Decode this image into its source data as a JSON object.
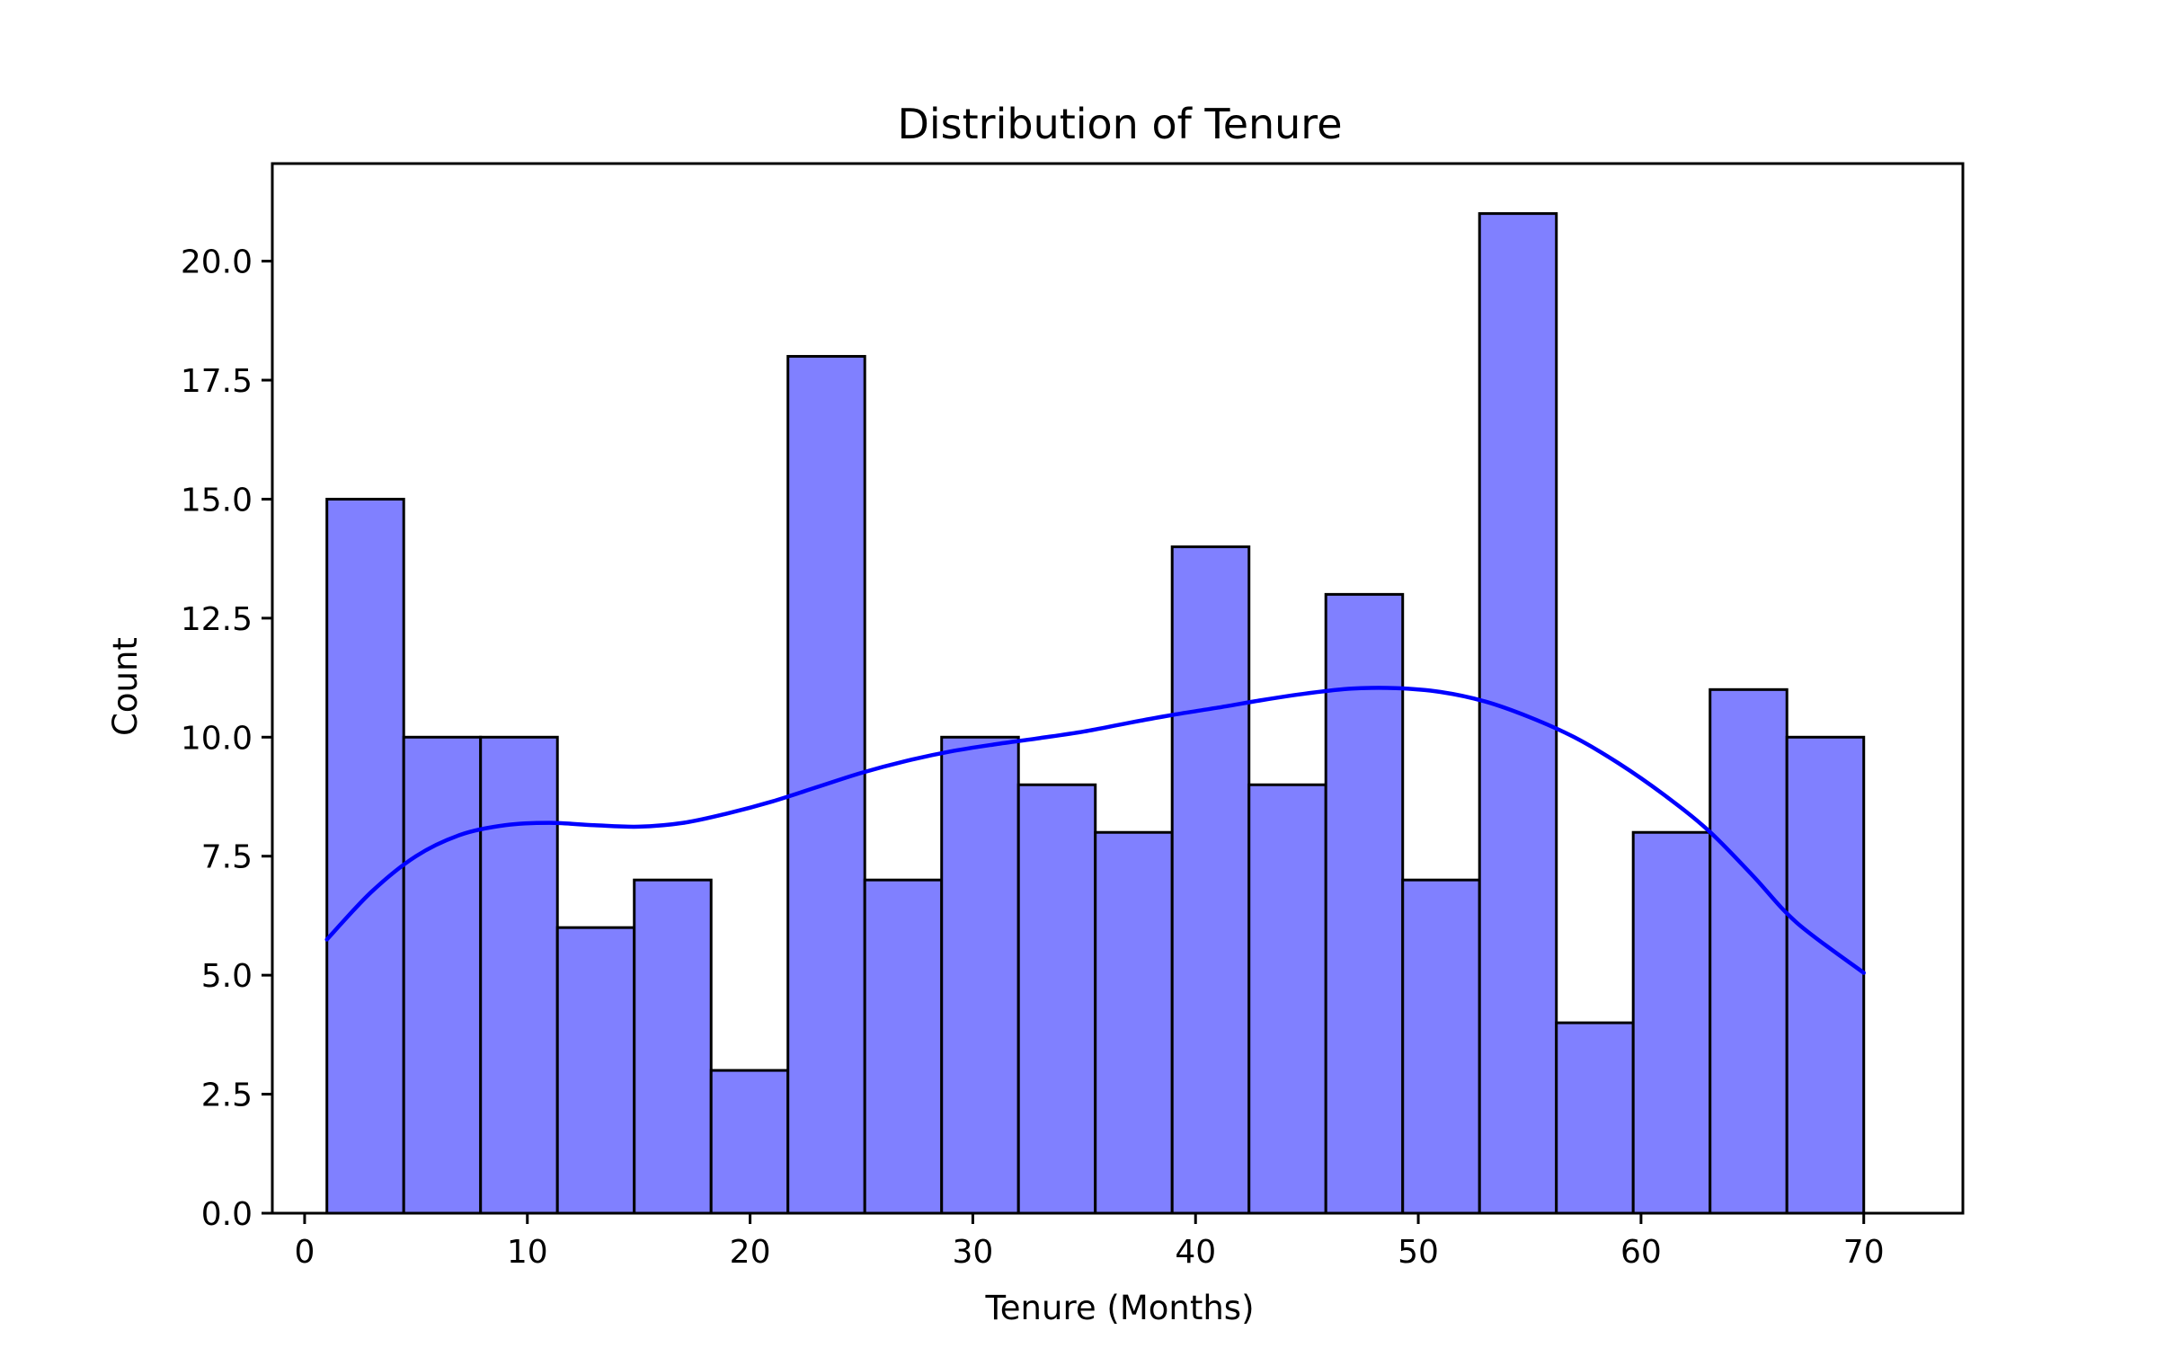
{
  "chart_data": {
    "type": "bar",
    "title": "Distribution of Tenure",
    "xlabel": "Tenure (Months)",
    "ylabel": "Count",
    "xlim": [
      -1.45,
      74.45
    ],
    "ylim": [
      0,
      22.05
    ],
    "x_ticks": [
      0,
      10,
      20,
      30,
      40,
      50,
      60,
      70
    ],
    "x_tick_labels": [
      "0",
      "10",
      "20",
      "30",
      "40",
      "50",
      "60",
      "70"
    ],
    "y_ticks": [
      0,
      2.5,
      5,
      7.5,
      10,
      12.5,
      15,
      17.5,
      20
    ],
    "y_tick_labels": [
      "0.0",
      "2.5",
      "5.0",
      "7.5",
      "10.0",
      "12.5",
      "15.0",
      "17.5",
      "20.0"
    ],
    "bin_edges": [
      1,
      4.45,
      7.9,
      11.35,
      14.8,
      18.25,
      21.7,
      25.15,
      28.6,
      32.05,
      35.5,
      38.95,
      42.4,
      45.85,
      49.3,
      52.75,
      56.2,
      59.65,
      63.1,
      66.55,
      70
    ],
    "values": [
      15,
      10,
      10,
      6,
      7,
      3,
      18,
      7,
      10,
      9,
      8,
      14,
      9,
      13,
      7,
      21,
      4,
      8,
      11,
      10
    ],
    "bar_color": "#8080ff",
    "bar_edge_color": "#000000",
    "kde": {
      "color": "#0000ff",
      "x": [
        1,
        3,
        5,
        7,
        9,
        11,
        13,
        15,
        17,
        19,
        21,
        23,
        25,
        27,
        29,
        31,
        33,
        35,
        37,
        39,
        41,
        43,
        45,
        47,
        49,
        51,
        53,
        55,
        57,
        59,
        61,
        63,
        65,
        67,
        70
      ],
      "y": [
        5.75,
        6.75,
        7.5,
        7.95,
        8.15,
        8.2,
        8.15,
        8.12,
        8.2,
        8.4,
        8.65,
        8.95,
        9.25,
        9.5,
        9.7,
        9.85,
        9.98,
        10.12,
        10.3,
        10.47,
        10.62,
        10.78,
        10.92,
        11.02,
        11.03,
        10.95,
        10.75,
        10.42,
        10.0,
        9.45,
        8.8,
        8.05,
        7.1,
        6.1,
        5.05
      ]
    },
    "grid": false,
    "legend": false
  }
}
